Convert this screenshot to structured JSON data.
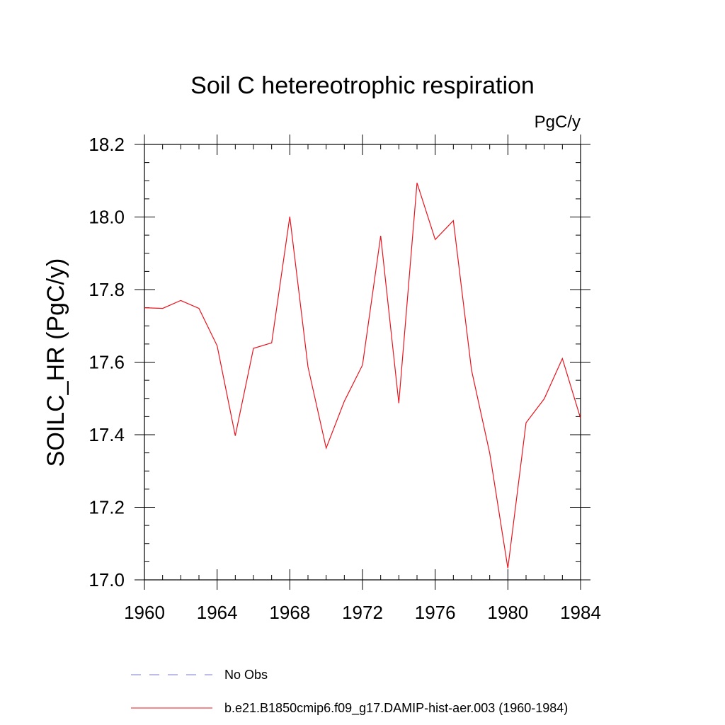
{
  "chart_data": {
    "type": "line",
    "title": "Soil C hetereotrophic respiration",
    "units_label": "PgC/y",
    "ylabel": "SOILC_HR  (PgC/y)",
    "xlabel": "",
    "xlim": [
      1960,
      1984
    ],
    "ylim": [
      17.0,
      18.2
    ],
    "x_ticks": [
      1960,
      1964,
      1968,
      1972,
      1976,
      1980,
      1984
    ],
    "x_tick_labels": [
      "1960",
      "1964",
      "1968",
      "1972",
      "1976",
      "1980",
      "1984"
    ],
    "y_ticks": [
      17.0,
      17.2,
      17.4,
      17.6,
      17.8,
      18.0,
      18.2
    ],
    "y_tick_labels": [
      "17.0",
      "17.2",
      "17.4",
      "17.6",
      "17.8",
      "18.0",
      "18.2"
    ],
    "grid": false,
    "legend_placement": "bottom",
    "x": [
      1960,
      1961,
      1962,
      1963,
      1964,
      1965,
      1966,
      1967,
      1968,
      1969,
      1970,
      1971,
      1972,
      1973,
      1974,
      1975,
      1976,
      1977,
      1978,
      1979,
      1980,
      1981,
      1982,
      1983,
      1984
    ],
    "series": [
      {
        "name": "b.e21.B1850cmip6.f09_g17.DAMIP-hist-aer.003 (1960-1984)",
        "color": "#e8141e",
        "style": "solid",
        "values": [
          17.75,
          17.748,
          17.77,
          17.748,
          17.645,
          17.397,
          17.638,
          17.653,
          18.001,
          17.587,
          17.363,
          17.492,
          17.592,
          17.948,
          17.487,
          18.094,
          17.938,
          17.99,
          17.578,
          17.349,
          17.032,
          17.433,
          17.499,
          17.61,
          17.445
        ]
      }
    ],
    "legend": [
      {
        "label": "No Obs",
        "color": "#7b7bd6",
        "style": "dashed"
      },
      {
        "label": "b.e21.B1850cmip6.f09_g17.DAMIP-hist-aer.003 (1960-1984)",
        "color": "#e8141e",
        "style": "solid"
      }
    ]
  }
}
